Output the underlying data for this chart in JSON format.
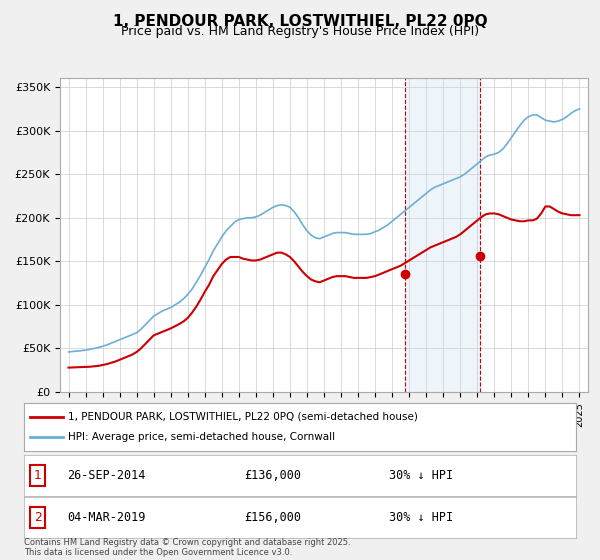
{
  "title": "1, PENDOUR PARK, LOSTWITHIEL, PL22 0PQ",
  "subtitle": "Price paid vs. HM Land Registry's House Price Index (HPI)",
  "hpi_color": "#6baed6",
  "price_color": "#cc0000",
  "background_color": "#f5f5f5",
  "plot_bg_color": "#ffffff",
  "ylim": [
    0,
    360000
  ],
  "yticks": [
    0,
    50000,
    100000,
    150000,
    200000,
    250000,
    300000,
    350000
  ],
  "ytick_labels": [
    "£0",
    "£50K",
    "£100K",
    "£150K",
    "£200K",
    "£250K",
    "£300K",
    "£350K"
  ],
  "xlim_start": 1994.5,
  "xlim_end": 2025.5,
  "xticks": [
    1995,
    1996,
    1997,
    1998,
    1999,
    2000,
    2001,
    2002,
    2003,
    2004,
    2005,
    2006,
    2007,
    2008,
    2009,
    2010,
    2011,
    2012,
    2013,
    2014,
    2015,
    2016,
    2017,
    2018,
    2019,
    2020,
    2021,
    2022,
    2023,
    2024,
    2025
  ],
  "purchase1_x": 2014.74,
  "purchase1_y": 136000,
  "purchase1_label": "1",
  "purchase1_date": "26-SEP-2014",
  "purchase1_price": "£136,000",
  "purchase1_hpi": "30% ↓ HPI",
  "purchase2_x": 2019.17,
  "purchase2_y": 156000,
  "purchase2_label": "2",
  "purchase2_date": "04-MAR-2019",
  "purchase2_price": "£156,000",
  "purchase2_hpi": "30% ↓ HPI",
  "legend_line1": "1, PENDOUR PARK, LOSTWITHIEL, PL22 0PQ (semi-detached house)",
  "legend_line2": "HPI: Average price, semi-detached house, Cornwall",
  "footnote": "Contains HM Land Registry data © Crown copyright and database right 2025.\nThis data is licensed under the Open Government Licence v3.0.",
  "hpi_data_x": [
    1995.0,
    1995.25,
    1995.5,
    1995.75,
    1996.0,
    1996.25,
    1996.5,
    1996.75,
    1997.0,
    1997.25,
    1997.5,
    1997.75,
    1998.0,
    1998.25,
    1998.5,
    1998.75,
    1999.0,
    1999.25,
    1999.5,
    1999.75,
    2000.0,
    2000.25,
    2000.5,
    2000.75,
    2001.0,
    2001.25,
    2001.5,
    2001.75,
    2002.0,
    2002.25,
    2002.5,
    2002.75,
    2003.0,
    2003.25,
    2003.5,
    2003.75,
    2004.0,
    2004.25,
    2004.5,
    2004.75,
    2005.0,
    2005.25,
    2005.5,
    2005.75,
    2006.0,
    2006.25,
    2006.5,
    2006.75,
    2007.0,
    2007.25,
    2007.5,
    2007.75,
    2008.0,
    2008.25,
    2008.5,
    2008.75,
    2009.0,
    2009.25,
    2009.5,
    2009.75,
    2010.0,
    2010.25,
    2010.5,
    2010.75,
    2011.0,
    2011.25,
    2011.5,
    2011.75,
    2012.0,
    2012.25,
    2012.5,
    2012.75,
    2013.0,
    2013.25,
    2013.5,
    2013.75,
    2014.0,
    2014.25,
    2014.5,
    2014.75,
    2015.0,
    2015.25,
    2015.5,
    2015.75,
    2016.0,
    2016.25,
    2016.5,
    2016.75,
    2017.0,
    2017.25,
    2017.5,
    2017.75,
    2018.0,
    2018.25,
    2018.5,
    2018.75,
    2019.0,
    2019.25,
    2019.5,
    2019.75,
    2020.0,
    2020.25,
    2020.5,
    2020.75,
    2021.0,
    2021.25,
    2021.5,
    2021.75,
    2022.0,
    2022.25,
    2022.5,
    2022.75,
    2023.0,
    2023.25,
    2023.5,
    2023.75,
    2024.0,
    2024.25,
    2024.5,
    2024.75,
    2025.0
  ],
  "hpi_data_y": [
    46000,
    46500,
    47000,
    47500,
    48000,
    49000,
    50000,
    51000,
    52500,
    54000,
    56000,
    58000,
    60000,
    62000,
    64000,
    66000,
    68000,
    72000,
    77000,
    82000,
    87000,
    90000,
    93000,
    95000,
    97000,
    100000,
    103000,
    107000,
    112000,
    118000,
    126000,
    134000,
    143000,
    152000,
    162000,
    170000,
    178000,
    185000,
    190000,
    195000,
    198000,
    199000,
    200000,
    200000,
    201000,
    203000,
    206000,
    209000,
    212000,
    214000,
    215000,
    214000,
    212000,
    207000,
    200000,
    192000,
    185000,
    180000,
    177000,
    176000,
    178000,
    180000,
    182000,
    183000,
    183000,
    183000,
    182000,
    181000,
    181000,
    181000,
    181000,
    182000,
    184000,
    186000,
    189000,
    192000,
    196000,
    200000,
    204000,
    208000,
    212000,
    216000,
    220000,
    224000,
    228000,
    232000,
    235000,
    237000,
    239000,
    241000,
    243000,
    245000,
    247000,
    250000,
    254000,
    258000,
    262000,
    266000,
    270000,
    272000,
    273000,
    275000,
    279000,
    285000,
    292000,
    299000,
    306000,
    312000,
    316000,
    318000,
    318000,
    315000,
    312000,
    311000,
    310000,
    311000,
    313000,
    316000,
    320000,
    323000,
    325000
  ],
  "price_data_x": [
    1995.0,
    1995.25,
    1995.5,
    1995.75,
    1996.0,
    1996.25,
    1996.5,
    1996.75,
    1997.0,
    1997.25,
    1997.5,
    1997.75,
    1998.0,
    1998.25,
    1998.5,
    1998.75,
    1999.0,
    1999.25,
    1999.5,
    1999.75,
    2000.0,
    2000.25,
    2000.5,
    2000.75,
    2001.0,
    2001.25,
    2001.5,
    2001.75,
    2002.0,
    2002.25,
    2002.5,
    2002.75,
    2003.0,
    2003.25,
    2003.5,
    2003.75,
    2004.0,
    2004.25,
    2004.5,
    2004.75,
    2005.0,
    2005.25,
    2005.5,
    2005.75,
    2006.0,
    2006.25,
    2006.5,
    2006.75,
    2007.0,
    2007.25,
    2007.5,
    2007.75,
    2008.0,
    2008.25,
    2008.5,
    2008.75,
    2009.0,
    2009.25,
    2009.5,
    2009.75,
    2010.0,
    2010.25,
    2010.5,
    2010.75,
    2011.0,
    2011.25,
    2011.5,
    2011.75,
    2012.0,
    2012.25,
    2012.5,
    2012.75,
    2013.0,
    2013.25,
    2013.5,
    2013.75,
    2014.0,
    2014.25,
    2014.5,
    2014.75,
    2015.0,
    2015.25,
    2015.5,
    2015.75,
    2016.0,
    2016.25,
    2016.5,
    2016.75,
    2017.0,
    2017.25,
    2017.5,
    2017.75,
    2018.0,
    2018.25,
    2018.5,
    2018.75,
    2019.0,
    2019.25,
    2019.5,
    2019.75,
    2020.0,
    2020.25,
    2020.5,
    2020.75,
    2021.0,
    2021.25,
    2021.5,
    2021.75,
    2022.0,
    2022.25,
    2022.5,
    2022.75,
    2023.0,
    2023.25,
    2023.5,
    2023.75,
    2024.0,
    2024.25,
    2024.5,
    2024.75,
    2025.0
  ],
  "price_data_y": [
    28000,
    28200,
    28400,
    28600,
    28800,
    29000,
    29500,
    30000,
    31000,
    32000,
    33500,
    35000,
    37000,
    39000,
    41000,
    43000,
    46000,
    50000,
    55000,
    60000,
    65000,
    67000,
    69000,
    71000,
    73000,
    75500,
    78000,
    81000,
    85000,
    91000,
    98000,
    106000,
    115000,
    123000,
    133000,
    140000,
    147000,
    152000,
    155000,
    155000,
    155000,
    153000,
    152000,
    151000,
    151000,
    152000,
    154000,
    156000,
    158000,
    160000,
    160000,
    158000,
    155000,
    150000,
    144000,
    138000,
    133000,
    129000,
    127000,
    126000,
    128000,
    130000,
    132000,
    133000,
    133000,
    133000,
    132000,
    131000,
    131000,
    131000,
    131000,
    132000,
    133000,
    135000,
    137000,
    139000,
    141000,
    143000,
    145000,
    148000,
    151000,
    154000,
    157000,
    160000,
    163000,
    166000,
    168000,
    170000,
    172000,
    174000,
    176000,
    178000,
    181000,
    185000,
    189000,
    193000,
    197000,
    201000,
    204000,
    205000,
    205000,
    204000,
    202000,
    200000,
    198000,
    197000,
    196000,
    196000,
    197000,
    197000,
    199000,
    205000,
    213000,
    213000,
    210000,
    207000,
    205000,
    204000,
    203000,
    203000,
    203000
  ]
}
